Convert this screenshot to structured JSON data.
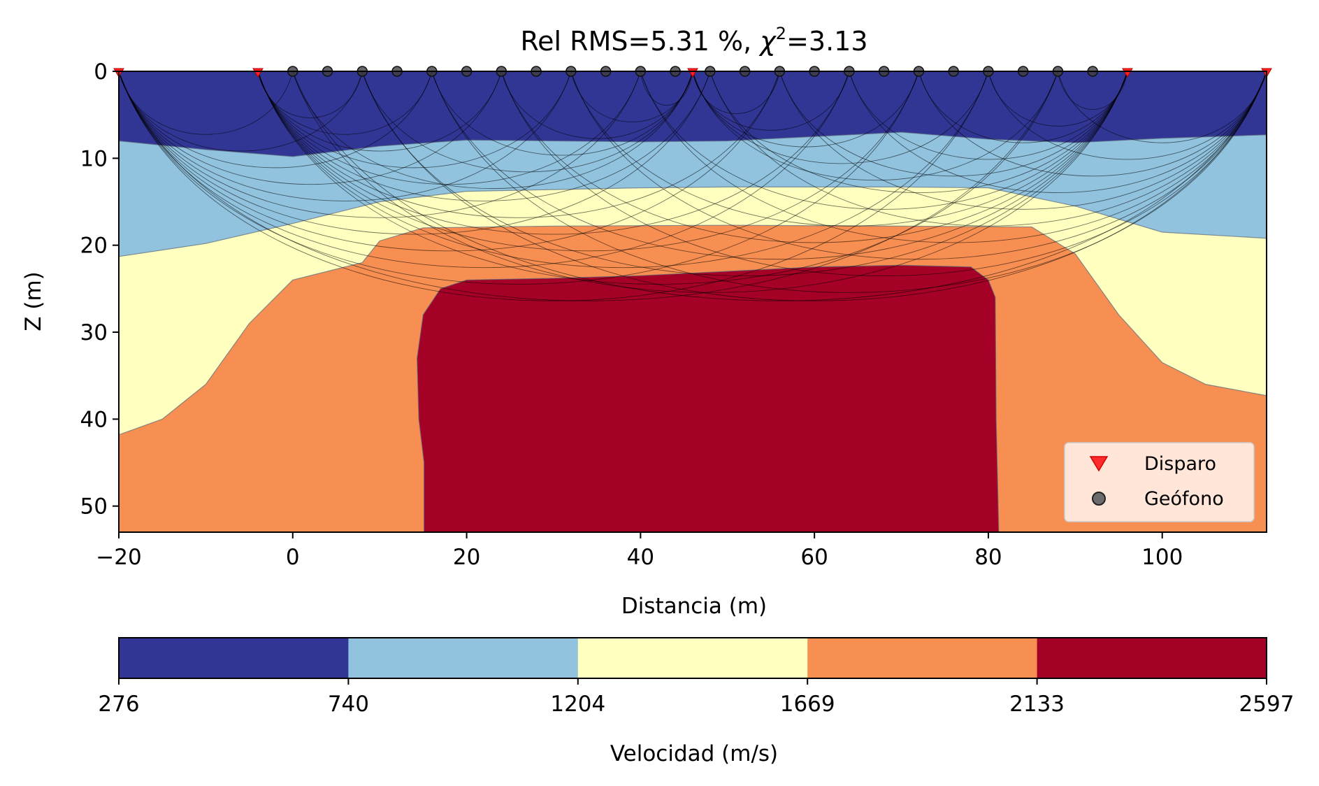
{
  "chart_data": {
    "type": "heatmap",
    "title": "Rel RMS=5.31 %, χ²=3.13",
    "title_parts": {
      "prefix": "Rel RMS=5.31 %, ",
      "chi": "χ",
      "sup": "2",
      "suffix": "=3.13"
    },
    "xlabel": "Distancia (m)",
    "ylabel": "Z (m)",
    "xlim": [
      -20,
      112
    ],
    "ylim": [
      53,
      0
    ],
    "y_inverted": true,
    "grid": false,
    "x_ticks": [
      -20,
      0,
      20,
      40,
      60,
      80,
      100
    ],
    "x_tick_labels": [
      "−20",
      "0",
      "20",
      "40",
      "60",
      "80",
      "100"
    ],
    "y_ticks": [
      0,
      10,
      20,
      30,
      40,
      50
    ],
    "y_tick_labels": [
      "0",
      "10",
      "20",
      "30",
      "40",
      "50"
    ],
    "colorbar": {
      "label": "Velocidad (m/s)",
      "boundaries": [
        276,
        740,
        1204,
        1669,
        2133,
        2597
      ],
      "tick_labels": [
        "276",
        "740",
        "1204",
        "1669",
        "2133",
        "2597"
      ],
      "colors": [
        "#313695",
        "#91c3df",
        "#ffffc0",
        "#f88f52",
        "#a50026"
      ],
      "orientation": "horizontal",
      "position": "bottom"
    },
    "layers": [
      {
        "velocity_range": [
          276,
          740
        ],
        "color": "#313695",
        "bottom_depth_profile": [
          [
            -20,
            8
          ],
          [
            -10,
            9
          ],
          [
            0,
            9.8
          ],
          [
            10,
            8.6
          ],
          [
            20,
            7.9
          ],
          [
            30,
            8
          ],
          [
            40,
            8.1
          ],
          [
            50,
            8
          ],
          [
            60,
            7.5
          ],
          [
            70,
            7
          ],
          [
            80,
            7.8
          ],
          [
            90,
            8.2
          ],
          [
            100,
            7.7
          ],
          [
            112,
            7.3
          ]
        ]
      },
      {
        "velocity_range": [
          740,
          1204
        ],
        "color": "#91c3df",
        "bottom_depth_profile": [
          [
            -20,
            21.3
          ],
          [
            -10,
            19.8
          ],
          [
            0,
            17.5
          ],
          [
            10,
            15
          ],
          [
            20,
            13.8
          ],
          [
            30,
            13.6
          ],
          [
            40,
            13.4
          ],
          [
            50,
            13.3
          ],
          [
            60,
            13.3
          ],
          [
            70,
            13.3
          ],
          [
            80,
            13.4
          ],
          [
            90,
            15.5
          ],
          [
            100,
            18.5
          ],
          [
            112,
            19.2
          ]
        ]
      },
      {
        "velocity_range": [
          1204,
          1669
        ],
        "color": "#ffffc0",
        "bottom_depth_profile": [
          [
            -20,
            41.8
          ],
          [
            -15,
            40
          ],
          [
            -10,
            36
          ],
          [
            -5,
            29
          ],
          [
            0,
            24
          ],
          [
            4,
            23
          ],
          [
            8,
            22
          ],
          [
            10,
            19.5
          ],
          [
            15,
            18
          ],
          [
            30,
            17.8
          ],
          [
            50,
            17.7
          ],
          [
            70,
            17.8
          ],
          [
            85,
            17.9
          ],
          [
            90,
            21
          ],
          [
            95,
            28
          ],
          [
            100,
            33.5
          ],
          [
            105,
            36
          ],
          [
            112,
            37.3
          ]
        ]
      },
      {
        "velocity_range": [
          1669,
          2133
        ],
        "color": "#f88f52",
        "boundary_of_high_velocity_body": [
          [
            15.1,
            53
          ],
          [
            15.1,
            45
          ],
          [
            14.5,
            40
          ],
          [
            14.3,
            33
          ],
          [
            15,
            28
          ],
          [
            17,
            25
          ],
          [
            20,
            24
          ],
          [
            30,
            23.8
          ],
          [
            40,
            23.5
          ],
          [
            50,
            23
          ],
          [
            60,
            22.5
          ],
          [
            70,
            22.3
          ],
          [
            78,
            22.5
          ],
          [
            80,
            24
          ],
          [
            80.8,
            26
          ],
          [
            80.9,
            40
          ],
          [
            81.2,
            53
          ]
        ]
      },
      {
        "velocity_range": [
          2133,
          2597
        ],
        "color": "#a50026"
      }
    ],
    "shots": {
      "label": "Disparo",
      "marker": "triangle-down",
      "color": "#ff0000",
      "x": [
        -20,
        -4,
        46,
        96,
        112
      ],
      "z": 0
    },
    "geophones": {
      "label": "Geófono",
      "marker": "circle",
      "color": "#404040",
      "x": [
        0,
        4,
        8,
        12,
        16,
        20,
        24,
        28,
        32,
        36,
        40,
        44,
        48,
        52,
        56,
        60,
        64,
        68,
        72,
        76,
        80,
        84,
        88,
        92
      ],
      "z": 0
    },
    "ray_paths": {
      "color": "#000000",
      "description_visible": false
    },
    "legend": {
      "placement": "lower-right",
      "entries": [
        "Disparo",
        "Geófono"
      ],
      "background": "#ffe6d8"
    }
  }
}
